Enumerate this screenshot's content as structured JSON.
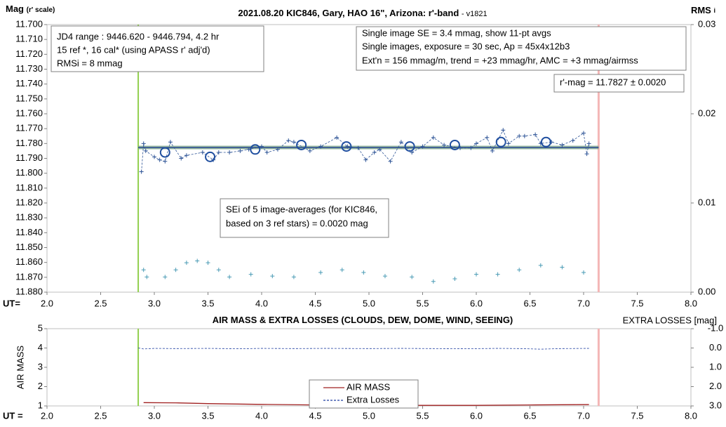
{
  "chart_data": [
    {
      "type": "scatter",
      "title": "2021.08.20 KIC846, Gary, HAO 16\", Arizona: r'-band",
      "subtitle": "- v1821",
      "ylabel": "Mag",
      "ylabel_note": "(r' scale)",
      "y2label": "RMS",
      "y2label_sub": "i",
      "xlabel": "UT=",
      "xlim": [
        2.0,
        8.0
      ],
      "xticks": [
        {
          "value": 2,
          "label": "2.0"
        },
        2.5,
        {
          "value": 3,
          "label": "3.0"
        },
        3.5,
        {
          "value": 4,
          "label": "4.0"
        },
        4.5,
        {
          "value": 5,
          "label": "5.0"
        },
        5.5,
        {
          "value": 6,
          "label": "6.0"
        },
        6.5,
        {
          "value": 7,
          "label": "7.0"
        },
        7.5,
        {
          "value": 8,
          "label": "8.0"
        }
      ],
      "ylim": [
        11.88,
        11.7
      ],
      "yticks": [
        {
          "value": 11.7,
          "label": "11.700"
        },
        {
          "value": 11.71,
          "label": "11.710"
        },
        {
          "value": 11.72,
          "label": "11.720"
        },
        {
          "value": 11.73,
          "label": "11.730"
        },
        {
          "value": 11.74,
          "label": "11.740"
        },
        {
          "value": 11.75,
          "label": "11.750"
        },
        {
          "value": 11.76,
          "label": "11.760"
        },
        {
          "value": 11.77,
          "label": "11.770"
        },
        {
          "value": 11.78,
          "label": "11.780"
        },
        {
          "value": 11.79,
          "label": "11.790"
        },
        {
          "value": 11.8,
          "label": "11.800"
        },
        {
          "value": 11.81,
          "label": "11.810"
        },
        {
          "value": 11.82,
          "label": "11.820"
        },
        {
          "value": 11.83,
          "label": "11.830"
        },
        {
          "value": 11.84,
          "label": "11.840"
        },
        {
          "value": 11.85,
          "label": "11.850"
        },
        {
          "value": 11.86,
          "label": "11.860"
        },
        {
          "value": 11.87,
          "label": "11.870"
        },
        {
          "value": 11.88,
          "label": "11.880"
        }
      ],
      "y2lim": [
        0,
        0.03
      ],
      "y2ticks": [
        {
          "value": 0,
          "label": "0.00"
        },
        0.01,
        0.02,
        0.03
      ],
      "vlines": [
        2.85,
        7.14
      ],
      "vline_colors": [
        "#92d050",
        "#f4b6b6"
      ],
      "series": [
        {
          "color": "#7fa88a",
          "line": "thick",
          "x": [
            2.85,
            7.14
          ],
          "values": [
            11.7827,
            11.7827
          ]
        },
        {
          "color": "#1f3f8f",
          "line": "solid",
          "x": [
            2.85,
            7.14
          ],
          "values": [
            11.7827,
            11.7827
          ]
        },
        {
          "color": "#2f5597",
          "line": "dashed",
          "marker": "plus",
          "x": [
            2.88,
            2.9,
            2.92,
            3.0,
            3.05,
            3.1,
            3.15,
            3.25,
            3.3,
            3.45,
            3.55,
            3.6,
            3.7,
            3.8,
            3.88,
            4.0,
            4.05,
            4.15,
            4.25,
            4.3,
            4.45,
            4.55,
            4.7,
            4.8,
            4.9,
            4.97,
            5.05,
            5.1,
            5.2,
            5.3,
            5.4,
            5.5,
            5.6,
            5.7,
            5.85,
            5.95,
            6.0,
            6.1,
            6.15,
            6.25,
            6.3,
            6.4,
            6.45,
            6.55,
            6.6,
            6.7,
            6.8,
            6.9,
            7.0,
            7.03,
            7.05
          ],
          "values": [
            11.799,
            11.78,
            11.785,
            11.789,
            11.791,
            11.792,
            11.779,
            11.79,
            11.788,
            11.786,
            11.791,
            11.786,
            11.786,
            11.785,
            11.784,
            11.782,
            11.786,
            11.784,
            11.778,
            11.779,
            11.785,
            11.782,
            11.776,
            11.782,
            11.783,
            11.791,
            11.786,
            11.784,
            11.792,
            11.779,
            11.786,
            11.782,
            11.776,
            11.781,
            11.783,
            11.783,
            11.78,
            11.776,
            11.785,
            11.771,
            11.78,
            11.775,
            11.775,
            11.774,
            11.78,
            11.779,
            11.781,
            11.778,
            11.773,
            11.787,
            11.78
          ]
        },
        {
          "color": "#1f4e9f",
          "marker": "circle",
          "x": [
            3.1,
            3.52,
            3.94,
            4.37,
            4.79,
            5.38,
            5.8,
            6.23,
            6.65
          ],
          "values": [
            11.786,
            11.789,
            11.784,
            11.781,
            11.782,
            11.782,
            11.781,
            11.779,
            11.779
          ]
        },
        {
          "color": "#4a9bb5",
          "marker": "plus",
          "axis": "y2",
          "x": [
            2.9,
            2.93,
            3.1,
            3.2,
            3.3,
            3.4,
            3.5,
            3.6,
            3.7,
            3.9,
            4.1,
            4.3,
            4.55,
            4.75,
            4.95,
            5.15,
            5.4,
            5.6,
            5.8,
            6.0,
            6.2,
            6.4,
            6.6,
            6.8,
            7.0
          ],
          "values": [
            0.0025,
            0.0017,
            0.0017,
            0.0025,
            0.0033,
            0.0035,
            0.0033,
            0.0025,
            0.0017,
            0.002,
            0.0018,
            0.0017,
            0.0022,
            0.0025,
            0.0022,
            0.0018,
            0.0017,
            0.0012,
            0.0015,
            0.002,
            0.002,
            0.0025,
            0.003,
            0.0028,
            0.0022
          ]
        }
      ],
      "boxes": [
        {
          "lines": [
            "JD4 range : 9446.620 - 9446.794,  4.2  hr",
            "15 ref *, 16 cal* (using APASS r' adj'd)",
            "RMSi = 8 mmag"
          ]
        },
        {
          "lines": [
            "Single image SE = 3.4 mmag, show  11-pt avgs",
            "Single images, exposure = 30 sec, Ap = 45x4x12b3",
            "Ext'n = 156 mmag/m, trend =  +23 mmag/hr, AMC = +3 mmag/airmss"
          ]
        },
        {
          "lines": [
            "r'-mag = 11.7827 ± 0.0020"
          ]
        },
        {
          "lines": [
            "SEi of 5 image-averages (for KIC846,",
            "based on 3 ref stars) = 0.0020 mag"
          ]
        }
      ]
    },
    {
      "type": "line",
      "title": "AIR MASS & EXTRA LOSSES (CLOUDS, DEW, DOME, WIND, SEEING)",
      "ylabel": "AIR MASS",
      "y2label": "EXTRA LOSSES [mag]",
      "xlabel": "UT =",
      "xlim": [
        2.0,
        8.0
      ],
      "xticks": [
        {
          "value": 2,
          "label": "2.0"
        },
        2.5,
        {
          "value": 3,
          "label": "3.0"
        },
        3.5,
        {
          "value": 4,
          "label": "4.0"
        },
        4.5,
        {
          "value": 5,
          "label": "5.0"
        },
        5.5,
        {
          "value": 6,
          "label": "6.0"
        },
        6.5,
        {
          "value": 7,
          "label": "7.0"
        },
        7.5,
        {
          "value": 8,
          "label": "8.0"
        }
      ],
      "ylim": [
        1,
        5
      ],
      "yticks": [
        1,
        2,
        3,
        4,
        5
      ],
      "y2lim": [
        3.0,
        -1.0
      ],
      "y2ticks": [
        {
          "value": -1,
          "label": "-1.0"
        },
        {
          "value": 0,
          "label": "0.0"
        },
        {
          "value": 1,
          "label": "1.0"
        },
        {
          "value": 2,
          "label": "2.0"
        },
        {
          "value": 3,
          "label": "3.0"
        }
      ],
      "vlines": [
        2.85,
        7.14
      ],
      "vline_colors": [
        "#92d050",
        "#f4b6b6"
      ],
      "series": [
        {
          "name": "AIR MASS",
          "color": "#a02020",
          "line": "solid",
          "x": [
            2.9,
            3.2,
            3.5,
            4.0,
            4.5,
            5.0,
            5.5,
            6.0,
            6.5,
            7.05
          ],
          "values": [
            1.17,
            1.16,
            1.12,
            1.08,
            1.05,
            1.04,
            1.03,
            1.03,
            1.05,
            1.07
          ]
        },
        {
          "name": "Extra Losses",
          "color": "#1f3fa0",
          "line": "dashed",
          "axis": "y2",
          "x": [
            2.85,
            2.9,
            3.0,
            3.2,
            3.5,
            3.8,
            4.0,
            4.3,
            4.6,
            5.0,
            5.3,
            5.6,
            5.9,
            6.2,
            6.4,
            6.6,
            6.8,
            7.05
          ],
          "values": [
            0.0,
            0.05,
            0.02,
            0.03,
            0.02,
            0.04,
            0.02,
            0.03,
            0.02,
            0.03,
            0.02,
            0.03,
            0.04,
            0.02,
            0.03,
            0.06,
            0.03,
            0.02
          ]
        }
      ]
    }
  ]
}
